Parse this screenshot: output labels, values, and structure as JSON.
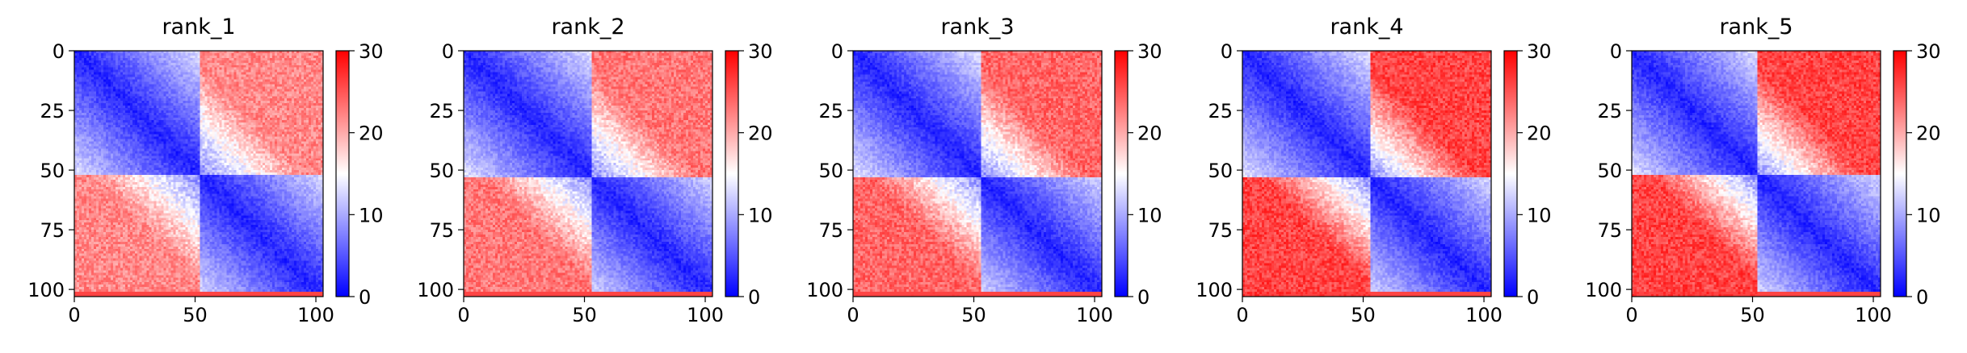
{
  "chart_data": [
    {
      "type": "heatmap",
      "title": "rank_1",
      "x_ticks": [
        "0",
        "50",
        "100"
      ],
      "y_ticks": [
        "0",
        "25",
        "50",
        "75",
        "100"
      ],
      "xlim": [
        0,
        103
      ],
      "ylim": [
        103,
        0
      ],
      "colorbar": {
        "ticks": [
          "0",
          "10",
          "20",
          "30"
        ],
        "range": [
          0,
          30
        ],
        "colormap": "bwr"
      },
      "structure": {
        "n": 103,
        "split": 52,
        "within_block": 2,
        "between_block": 22,
        "bottom_edge_rows": 2
      }
    },
    {
      "type": "heatmap",
      "title": "rank_2",
      "x_ticks": [
        "0",
        "50",
        "100"
      ],
      "y_ticks": [
        "0",
        "25",
        "50",
        "75",
        "100"
      ],
      "xlim": [
        0,
        103
      ],
      "ylim": [
        103,
        0
      ],
      "colorbar": {
        "ticks": [
          "0",
          "10",
          "20",
          "30"
        ],
        "range": [
          0,
          30
        ],
        "colormap": "bwr"
      },
      "structure": {
        "n": 103,
        "split": 53,
        "within_block": 2,
        "between_block": 23,
        "bottom_edge_rows": 2
      }
    },
    {
      "type": "heatmap",
      "title": "rank_3",
      "x_ticks": [
        "0",
        "50",
        "100"
      ],
      "y_ticks": [
        "0",
        "25",
        "50",
        "75",
        "100"
      ],
      "xlim": [
        0,
        103
      ],
      "ylim": [
        103,
        0
      ],
      "colorbar": {
        "ticks": [
          "0",
          "10",
          "20",
          "30"
        ],
        "range": [
          0,
          30
        ],
        "colormap": "bwr"
      },
      "structure": {
        "n": 103,
        "split": 53,
        "within_block": 2,
        "between_block": 24,
        "bottom_edge_rows": 2
      }
    },
    {
      "type": "heatmap",
      "title": "rank_4",
      "x_ticks": [
        "0",
        "50",
        "100"
      ],
      "y_ticks": [
        "0",
        "25",
        "50",
        "75",
        "100"
      ],
      "xlim": [
        0,
        103
      ],
      "ylim": [
        103,
        0
      ],
      "colorbar": {
        "ticks": [
          "0",
          "10",
          "20",
          "30"
        ],
        "range": [
          0,
          30
        ],
        "colormap": "bwr"
      },
      "structure": {
        "n": 103,
        "split": 53,
        "within_block": 2,
        "between_block": 26,
        "bottom_edge_rows": 2
      }
    },
    {
      "type": "heatmap",
      "title": "rank_5",
      "x_ticks": [
        "0",
        "50",
        "100"
      ],
      "y_ticks": [
        "0",
        "25",
        "50",
        "75",
        "100"
      ],
      "xlim": [
        0,
        103
      ],
      "ylim": [
        103,
        0
      ],
      "colorbar": {
        "ticks": [
          "0",
          "10",
          "20",
          "30"
        ],
        "range": [
          0,
          30
        ],
        "colormap": "bwr"
      },
      "structure": {
        "n": 103,
        "split": 52,
        "within_block": 2,
        "between_block": 26,
        "bottom_edge_rows": 2
      }
    }
  ],
  "colors": {
    "low": "#0000ff",
    "mid": "#ffffff",
    "high": "#ff0000"
  }
}
